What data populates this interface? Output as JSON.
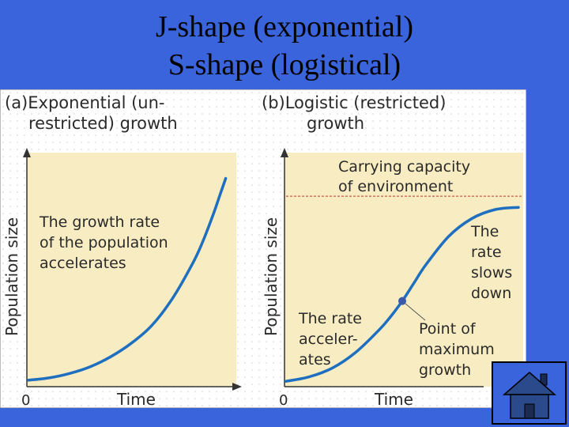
{
  "title_line1": "J-shape (exponential)",
  "title_line2": "S-shape (logistical)",
  "colors": {
    "background": "#3a64dc",
    "panel_fill": "#f8ecc2",
    "curve": "#1f6fc0",
    "capacity_line": "#c0392b",
    "point": "#3b5aa8"
  },
  "chart_data": [
    {
      "type": "line",
      "panel": "(a)",
      "title_line1": "(a)Exponential (un-",
      "title_line2": "restricted) growth",
      "xlabel": "Time",
      "ylabel": "Population size",
      "x_tick": "0",
      "annotations": [
        "The growth rate",
        "of the population",
        "accelerates"
      ],
      "xlim": [
        0,
        10
      ],
      "ylim": [
        0,
        10
      ],
      "series": [
        {
          "x": [
            0,
            1,
            2,
            3,
            4,
            5,
            6,
            7,
            8,
            8.5,
            9,
            9.3,
            9.6
          ],
          "values": [
            0.15,
            0.25,
            0.45,
            0.75,
            1.2,
            1.8,
            2.6,
            3.8,
            5.4,
            6.4,
            7.6,
            8.4,
            9.2
          ]
        }
      ]
    },
    {
      "type": "line",
      "panel": "(b)",
      "title_line1": "(b)Logistic (restricted)",
      "title_line2": "growth",
      "xlabel": "Time",
      "ylabel": "Population size",
      "x_tick": "0",
      "capacity_label": [
        "Carrying capacity",
        "of environment"
      ],
      "carrying_capacity": 8,
      "annotations_right": [
        "The",
        "rate",
        "slows",
        "down"
      ],
      "annotations_left": [
        "The rate",
        "acceler-",
        "ates"
      ],
      "point_label": [
        "Point of",
        "maximum",
        "growth"
      ],
      "point": {
        "x": 5,
        "y": 3.7
      },
      "xlim": [
        0,
        10
      ],
      "ylim": [
        0,
        10
      ],
      "series": [
        {
          "x": [
            0,
            1,
            2,
            3,
            4,
            4.5,
            5,
            5.5,
            6,
            7,
            8,
            9,
            10
          ],
          "values": [
            0.1,
            0.3,
            0.7,
            1.4,
            2.4,
            3.0,
            3.7,
            4.5,
            5.3,
            6.6,
            7.4,
            7.8,
            7.9
          ]
        }
      ]
    }
  ]
}
